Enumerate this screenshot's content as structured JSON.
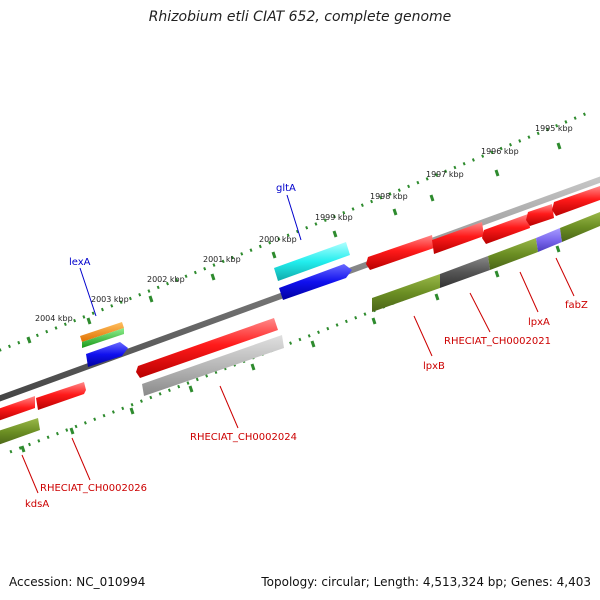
{
  "title": "Rhizobium etli CIAT 652, complete genome",
  "footer": {
    "accession": "Accession: NC_010994",
    "topology": "Topology: circular; Length: 4,513,324 bp; Genes: 4,403"
  },
  "scale_labels": [
    "1995 kbp",
    "1996 kbp",
    "1997 kbp",
    "1998 kbp",
    "1999 kbp",
    "2000 kbp",
    "2001 kbp",
    "2002 kbp",
    "2003 kbp",
    "2004 kbp"
  ],
  "gene_labels": [
    "gltA",
    "lexA",
    "RHECIAT_CH0002024",
    "lpxB",
    "RHECIAT_CH0002021",
    "lpxA",
    "fabZ",
    "RHECIAT_CH0002026",
    "kdsA"
  ],
  "colors": {
    "backbone": "#777777",
    "scale": "#2e8b2e",
    "red": "#ff1a1a",
    "olive": "#6b8e23",
    "blue": "#1010ee",
    "cyan": "#22eeee",
    "gray": "#b8b8b8",
    "orange": "#ff9900",
    "green": "#33cc33",
    "purple": "#7b68ee",
    "label_red": "#cc0000",
    "label_blue": "#0000cc"
  }
}
